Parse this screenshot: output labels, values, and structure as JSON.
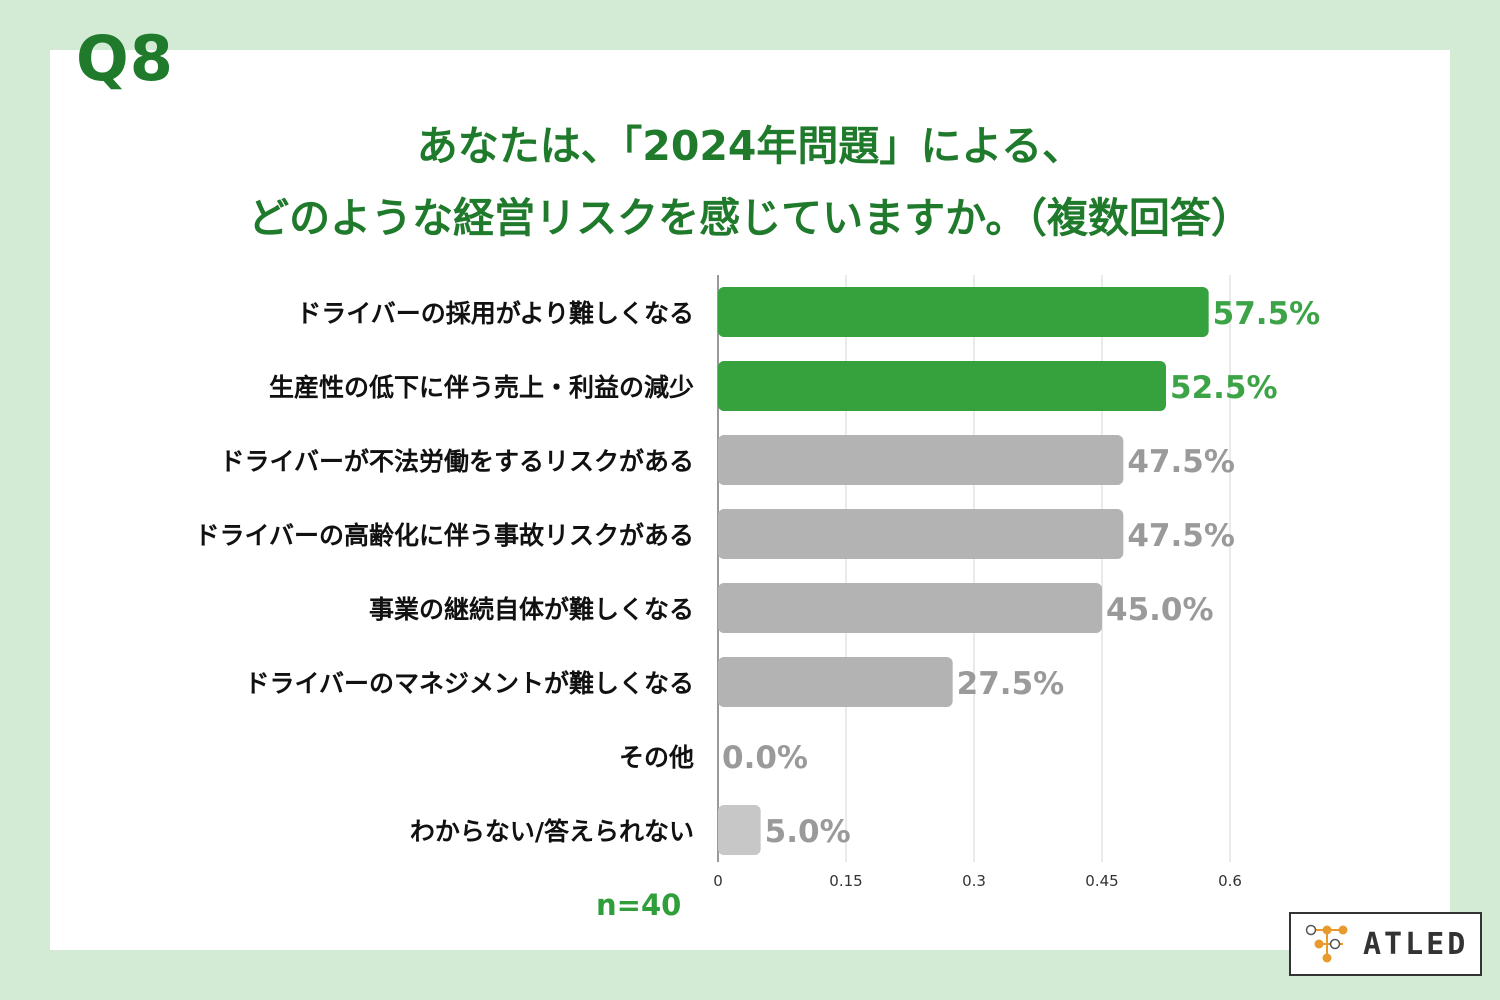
{
  "header": {
    "question_label": "Q8",
    "title_line1": "あなたは、「2024年問題」による、",
    "title_line2": "どのような経営リスクを感じていますか。（複数回答）"
  },
  "footer": {
    "sample_size": "n=40",
    "logo_text": "ATLED"
  },
  "colors": {
    "background": "#d3ead5",
    "title": "#1f7a2c",
    "highlight_bar": "#35a23e",
    "highlight_label": "#3ca346",
    "other_bar": "#b3b3b3",
    "other_label": "#9a9a9a"
  },
  "chart_data": {
    "type": "bar",
    "orientation": "horizontal",
    "categories": [
      "ドライバーの採用がより難しくなる",
      "生産性の低下に伴う売上・利益の減少",
      "ドライバーが不法労働をするリスクがある",
      "ドライバーの高齢化に伴う事故リスクがある",
      "事業の継続自体が難しくなる",
      "ドライバーのマネジメントが難しくなる",
      "その他",
      "わからない/答えられない"
    ],
    "values": [
      0.575,
      0.525,
      0.475,
      0.475,
      0.45,
      0.275,
      0.0,
      0.05
    ],
    "data_labels": [
      "57.5%",
      "52.5%",
      "47.5%",
      "47.5%",
      "45.0%",
      "27.5%",
      "0.0%",
      "5.0%"
    ],
    "highlighted": [
      true,
      true,
      false,
      false,
      false,
      false,
      false,
      false
    ],
    "xlim": [
      0,
      0.6
    ],
    "x_ticks": [
      0,
      0.15,
      0.3,
      0.45,
      0.6
    ],
    "x_tick_labels": [
      "0",
      "0.15",
      "0.3",
      "0.45",
      "0.6"
    ],
    "grid": true,
    "legend": "none"
  }
}
